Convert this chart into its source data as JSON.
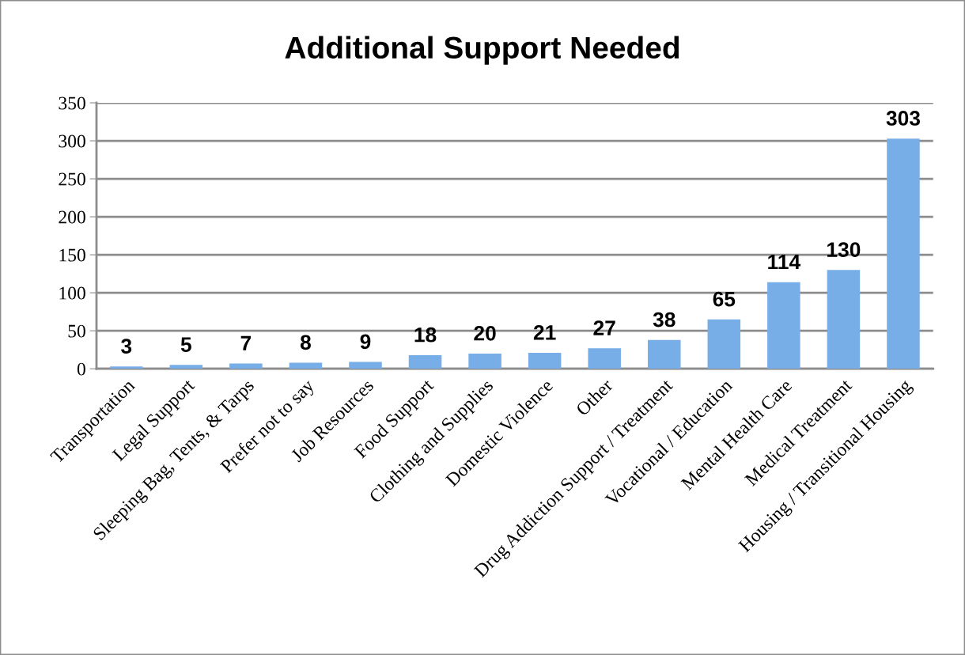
{
  "chart_data": {
    "type": "bar",
    "title": "Additional Support Needed",
    "categories": [
      "Transportation",
      "Legal Support",
      "Sleeping Bag, Tents, & Tarps",
      "Prefer not to say",
      "Job Resources",
      "Food Support",
      "Clothing and Supplies",
      "Domestic Violence",
      "Other",
      "Drug Addiction Support / Treatment",
      "Vocational / Education",
      "Mental Health Care",
      "Medical Treatment",
      "Housing / Transitional Housing"
    ],
    "values": [
      3,
      5,
      7,
      8,
      9,
      18,
      20,
      21,
      27,
      38,
      65,
      114,
      130,
      303
    ],
    "color": "#78aee8",
    "ylim": [
      0,
      350
    ],
    "yticks": [
      0,
      50,
      100,
      150,
      200,
      250,
      300,
      350
    ],
    "grid": "y",
    "data_labels": true,
    "legend": false
  }
}
